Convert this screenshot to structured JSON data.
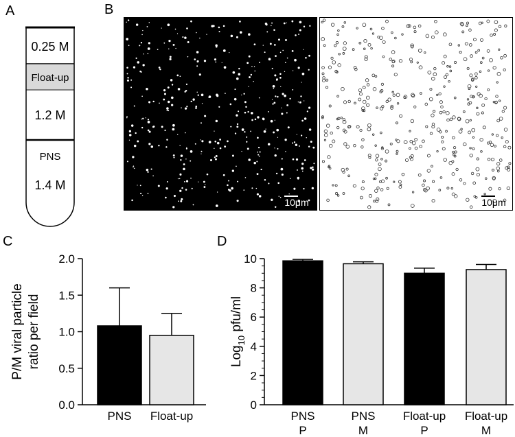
{
  "panels": [
    "A",
    "B",
    "C",
    "D"
  ],
  "tube": {
    "layers": [
      "0.25 M",
      "Float-up",
      "1.2 M",
      "PNS",
      "1.4 M"
    ]
  },
  "images": {
    "scale_bar": "10μm"
  },
  "chart_data": [
    {
      "type": "bar",
      "y_label": [
        "P/M viral particle",
        "ratio per field"
      ],
      "categories": [
        "PNS",
        "Float-up"
      ],
      "values": [
        1.08,
        0.95
      ],
      "errors": [
        0.52,
        0.3
      ],
      "colors": [
        "#000000",
        "#e6e6e6"
      ],
      "ylim": [
        0,
        2
      ],
      "yticks": [
        {
          "value": 0,
          "label": "0.0"
        },
        0.5,
        {
          "value": 1,
          "label": "1.0"
        },
        1.5,
        {
          "value": 2,
          "label": "2.0"
        }
      ]
    },
    {
      "type": "bar",
      "y_label": [
        "Log",
        "10",
        " pfu/ml"
      ],
      "categories": [
        [
          "PNS",
          "P"
        ],
        [
          "PNS",
          "M"
        ],
        [
          "Float-up",
          "P"
        ],
        [
          "Float-up",
          "M"
        ]
      ],
      "values": [
        9.85,
        9.65,
        9.0,
        9.25
      ],
      "errors": [
        0.1,
        0.13,
        0.35,
        0.35
      ],
      "colors": [
        "#000000",
        "#e6e6e6",
        "#000000",
        "#e6e6e6"
      ],
      "ylim": [
        0,
        10
      ],
      "yticks": [
        0,
        2,
        4,
        6,
        8,
        10
      ],
      "minor_yticks": [
        0.5,
        1,
        1.5,
        2.5,
        3,
        3.5,
        4.5,
        5,
        5.5,
        6.5,
        7,
        7.5,
        8.5,
        9,
        9.5
      ]
    }
  ]
}
